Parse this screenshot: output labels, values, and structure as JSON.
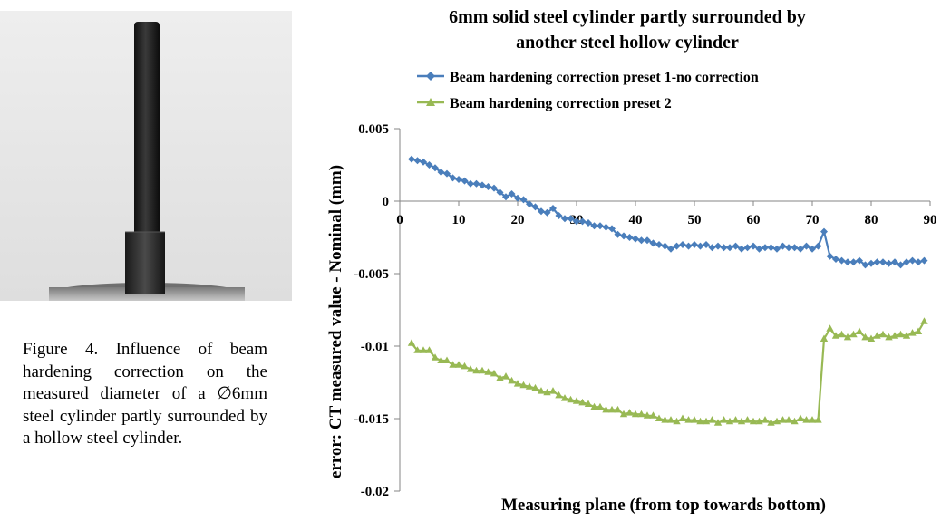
{
  "figure": {
    "caption": "Figure 4. Influence of beam hardening correction on the measured diameter of a ∅6mm steel cylinder partly surrounded by a hollow steel cylinder."
  },
  "colors": {
    "series1": "#4a7ebb",
    "series2": "#98b954",
    "axis": "#868686"
  },
  "chart_data": {
    "type": "line",
    "title": "6mm solid steel cylinder partly surrounded by another steel hollow cylinder",
    "title_lines": [
      "6mm solid steel cylinder partly surrounded by",
      "another steel hollow cylinder"
    ],
    "xlabel": "Measuring plane (from top towards bottom)",
    "ylabel": "error: CT measured value  - Nominal  (mm)",
    "xlim": [
      0,
      90
    ],
    "ylim": [
      -0.02,
      0.005
    ],
    "xticks": [
      0,
      10,
      20,
      30,
      40,
      50,
      60,
      70,
      80,
      90
    ],
    "yticks": [
      0.005,
      0,
      -0.005,
      -0.01,
      -0.015,
      -0.02
    ],
    "ytick_labels": [
      "0.005",
      "0",
      "-0.005",
      "-0.01",
      "-0.015",
      "-0.02"
    ],
    "grid": false,
    "legend_position": "top",
    "series": [
      {
        "name": "Beam hardening correction preset 1-no correction",
        "marker": "diamond",
        "x": [
          2,
          3,
          4,
          5,
          6,
          7,
          8,
          9,
          10,
          11,
          12,
          13,
          14,
          15,
          16,
          17,
          18,
          19,
          20,
          21,
          22,
          23,
          24,
          25,
          26,
          27,
          28,
          29,
          30,
          31,
          32,
          33,
          34,
          35,
          36,
          37,
          38,
          39,
          40,
          41,
          42,
          43,
          44,
          45,
          46,
          47,
          48,
          49,
          50,
          51,
          52,
          53,
          54,
          55,
          56,
          57,
          58,
          59,
          60,
          61,
          62,
          63,
          64,
          65,
          66,
          67,
          68,
          69,
          70,
          71,
          72,
          73,
          74,
          75,
          76,
          77,
          78,
          79,
          80,
          81,
          82,
          83,
          84,
          85,
          86,
          87,
          88,
          89
        ],
        "values": [
          0.0029,
          0.0028,
          0.0027,
          0.0025,
          0.0023,
          0.002,
          0.0019,
          0.0016,
          0.0015,
          0.0014,
          0.0012,
          0.0012,
          0.0011,
          0.001,
          0.0009,
          0.0006,
          0.0003,
          0.0005,
          0.0002,
          0.0001,
          -0.0002,
          -0.0004,
          -0.0007,
          -0.0008,
          -0.0005,
          -0.001,
          -0.0012,
          -0.0012,
          -0.0014,
          -0.0014,
          -0.0015,
          -0.0017,
          -0.0017,
          -0.0018,
          -0.0019,
          -0.0023,
          -0.0024,
          -0.0025,
          -0.0026,
          -0.0027,
          -0.0027,
          -0.0029,
          -0.003,
          -0.0031,
          -0.0033,
          -0.0031,
          -0.003,
          -0.0031,
          -0.003,
          -0.0031,
          -0.003,
          -0.0032,
          -0.0031,
          -0.0032,
          -0.0032,
          -0.0031,
          -0.0033,
          -0.0032,
          -0.0031,
          -0.0033,
          -0.0032,
          -0.0032,
          -0.0033,
          -0.0031,
          -0.0032,
          -0.0032,
          -0.0033,
          -0.0031,
          -0.0033,
          -0.0031,
          -0.0021,
          -0.0038,
          -0.004,
          -0.0041,
          -0.0042,
          -0.0042,
          -0.0041,
          -0.0044,
          -0.0043,
          -0.0042,
          -0.0042,
          -0.0043,
          -0.0042,
          -0.0044,
          -0.0042,
          -0.0041,
          -0.0042,
          -0.0041
        ]
      },
      {
        "name": "Beam hardening correction preset 2",
        "marker": "triangle",
        "x": [
          2,
          3,
          4,
          5,
          6,
          7,
          8,
          9,
          10,
          11,
          12,
          13,
          14,
          15,
          16,
          17,
          18,
          19,
          20,
          21,
          22,
          23,
          24,
          25,
          26,
          27,
          28,
          29,
          30,
          31,
          32,
          33,
          34,
          35,
          36,
          37,
          38,
          39,
          40,
          41,
          42,
          43,
          44,
          45,
          46,
          47,
          48,
          49,
          50,
          51,
          52,
          53,
          54,
          55,
          56,
          57,
          58,
          59,
          60,
          61,
          62,
          63,
          64,
          65,
          66,
          67,
          68,
          69,
          70,
          71,
          72,
          73,
          74,
          75,
          76,
          77,
          78,
          79,
          80,
          81,
          82,
          83,
          84,
          85,
          86,
          87,
          88,
          89
        ],
        "values": [
          -0.0098,
          -0.0103,
          -0.0103,
          -0.0103,
          -0.0108,
          -0.011,
          -0.011,
          -0.0113,
          -0.0113,
          -0.0114,
          -0.0116,
          -0.0117,
          -0.0117,
          -0.0118,
          -0.0119,
          -0.0122,
          -0.0121,
          -0.0124,
          -0.0126,
          -0.0127,
          -0.0128,
          -0.0129,
          -0.0131,
          -0.0132,
          -0.0131,
          -0.0134,
          -0.0136,
          -0.0137,
          -0.0138,
          -0.0139,
          -0.014,
          -0.0142,
          -0.0142,
          -0.0144,
          -0.0144,
          -0.0144,
          -0.0147,
          -0.0146,
          -0.0147,
          -0.0147,
          -0.0148,
          -0.0148,
          -0.015,
          -0.0151,
          -0.0151,
          -0.0152,
          -0.015,
          -0.0151,
          -0.0151,
          -0.0152,
          -0.0152,
          -0.0151,
          -0.0153,
          -0.0151,
          -0.0152,
          -0.0151,
          -0.0152,
          -0.0151,
          -0.0152,
          -0.0152,
          -0.0151,
          -0.0153,
          -0.0152,
          -0.0151,
          -0.0151,
          -0.0152,
          -0.015,
          -0.0151,
          -0.0151,
          -0.0151,
          -0.0095,
          -0.0088,
          -0.0093,
          -0.0092,
          -0.0094,
          -0.0092,
          -0.009,
          -0.0094,
          -0.0095,
          -0.0093,
          -0.0092,
          -0.0094,
          -0.0093,
          -0.0092,
          -0.0093,
          -0.0091,
          -0.009,
          -0.0083
        ]
      }
    ]
  }
}
